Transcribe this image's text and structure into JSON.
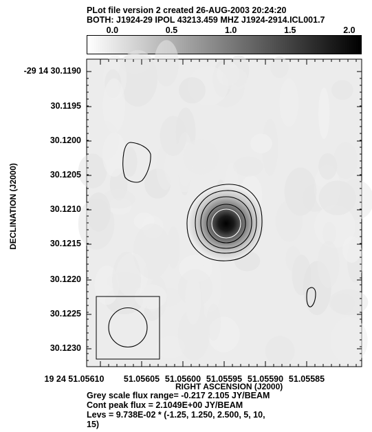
{
  "header": {
    "line1": "PLot file version 2  created 26-AUG-2003 20:24:20",
    "line2": "BOTH: J1924-29  IPOL  43213.459 MHZ  J1924-2914.ICL001.7"
  },
  "wedge": {
    "labels": [
      "0.0",
      "0.5",
      "1.0",
      "1.5",
      "2.0"
    ],
    "range": [
      -0.217,
      2.105
    ],
    "colors": {
      "low": "#ffffff",
      "high": "#000000"
    }
  },
  "chart_data": {
    "type": "heatmap",
    "xlabel": "RIGHT ASCENSION (J2000)",
    "ylabel": "DECLINATION (J2000)",
    "x_ticks": [
      "19 24 51.05610",
      "51.05605",
      "51.05600",
      "51.05595",
      "51.05590",
      "51.05585"
    ],
    "y_ticks": [
      "-29 14 30.1190",
      "30.1195",
      "30.1200",
      "30.1205",
      "30.1210",
      "30.1215",
      "30.1220",
      "30.1225",
      "30.1230"
    ],
    "grey_scale_range": [
      -0.217,
      2.105
    ],
    "peak_flux": 2.1049,
    "peak_position": {
      "ra_sec": 51.055955,
      "dec_arcsec": 30.1212
    },
    "contour_base": 0.09738,
    "contour_levels": [
      -1.25,
      1.25,
      2.5,
      5,
      10,
      15
    ],
    "secondary_contours": [
      {
        "ra_sec": 51.056048,
        "dec_arcsec": 30.1204
      },
      {
        "ra_sec": 51.055854,
        "dec_arcsec": 30.1223
      }
    ],
    "beam": {
      "ra_sec": 51.056056,
      "dec_arcsec": 30.12265
    }
  },
  "footer": {
    "line1": "Grey scale flux range= -0.217 2.105 JY/BEAM",
    "line2": "Cont peak flux =  2.1049E+00 JY/BEAM",
    "line3": "Levs = 9.738E-02 * (-1.25, 1.250, 2.500, 5, 10,",
    "line4": "15)"
  }
}
